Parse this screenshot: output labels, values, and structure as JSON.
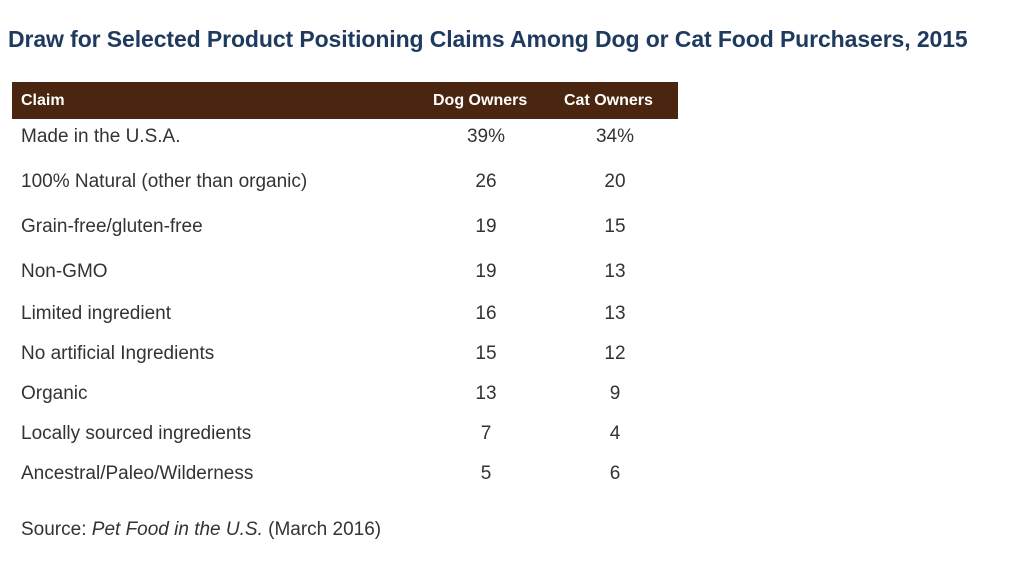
{
  "chart_data": {
    "type": "table",
    "title": "Draw for Selected Product Positioning Claims Among Dog or Cat Food Purchasers,  2015",
    "columns": [
      "Claim",
      "Dog Owners",
      "Cat Owners"
    ],
    "rows": [
      {
        "claim": "Made in the U.S.A.",
        "dog": "39%",
        "cat": "34%"
      },
      {
        "claim": "100% Natural  (other than organic)",
        "dog": "26",
        "cat": "20"
      },
      {
        "claim": "Grain-free/gluten-free",
        "dog": "19",
        "cat": "15"
      },
      {
        "claim": "Non-GMO",
        "dog": "19",
        "cat": "13"
      },
      {
        "claim": "Limited ingredient",
        "dog": "16",
        "cat": "13"
      },
      {
        "claim": "No artificial Ingredients",
        "dog": "15",
        "cat": "12"
      },
      {
        "claim": "Organic",
        "dog": "13",
        "cat": "9"
      },
      {
        "claim": "Locally sourced ingredients",
        "dog": "7",
        "cat": "4"
      },
      {
        "claim": "Ancestral/Paleo/Wilderness",
        "dog": "5",
        "cat": "6"
      }
    ],
    "header_color": "#4a250f",
    "title_color": "#1f3a5f"
  },
  "source": {
    "prefix": "Source: ",
    "publication": "Pet Food in the U.S.",
    "suffix": " (March 2016)"
  }
}
